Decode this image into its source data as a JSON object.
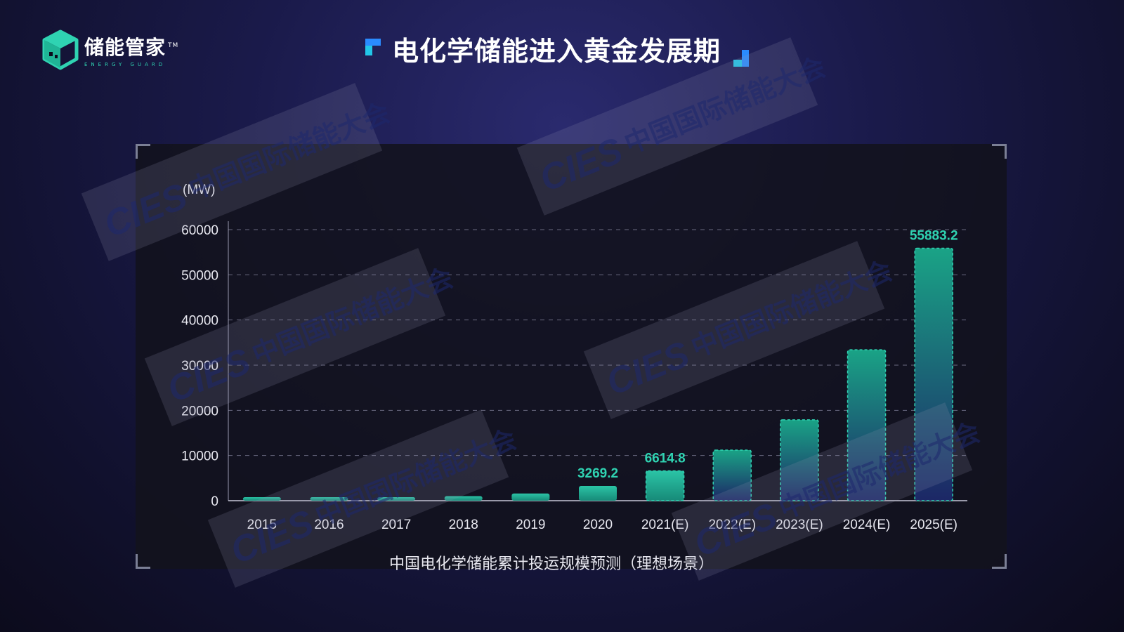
{
  "brand": {
    "name": "储能管家",
    "tm": "TM",
    "subtitle": "ENERGY GUARD",
    "accent": "#2fd3b2"
  },
  "slide": {
    "title": "电化学储能进入黄金发展期"
  },
  "watermark": {
    "text": "中国国际储能大会",
    "logo_text": "CIES"
  },
  "chart_data": {
    "type": "bar",
    "title": "中国电化学储能累计投运规模预测（理想场景）",
    "unit_label": "(MW)",
    "categories": [
      "2015",
      "2016",
      "2017",
      "2018",
      "2019",
      "2020",
      "2021(E)",
      "2022(E)",
      "2023(E)",
      "2024(E)",
      "2025(E)"
    ],
    "values": [
      105,
      190,
      390,
      1010,
      1590,
      3269.2,
      6614.8,
      11200,
      17900,
      33400,
      55883.2
    ],
    "labels": [
      "",
      "",
      "",
      "",
      "",
      "3269.2",
      "6614.8",
      "",
      "",
      "",
      "55883.2"
    ],
    "estimated": [
      false,
      false,
      false,
      false,
      false,
      false,
      true,
      true,
      true,
      true,
      true
    ],
    "ylim": [
      0,
      60000
    ],
    "yticks": [
      "0",
      "10000",
      "20000",
      "30000",
      "40000",
      "50000",
      "60000"
    ],
    "grid": true,
    "colors": {
      "bar_top": "#1aa386",
      "bar_bottom": "#1a2a6a",
      "label": "#2fd3b2",
      "axis_text": "#e8e8f0",
      "grid": "#6a6a80"
    }
  }
}
